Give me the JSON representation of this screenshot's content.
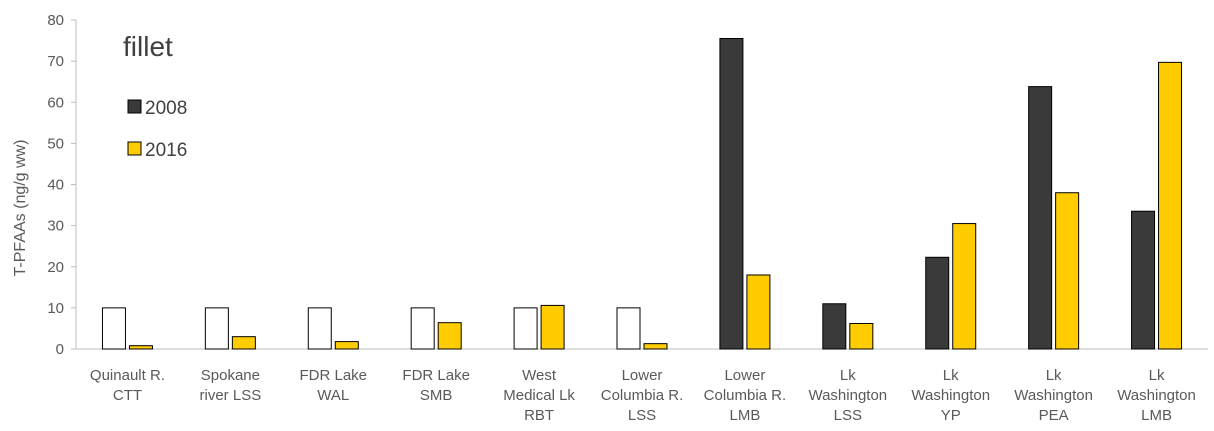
{
  "chart_data": {
    "type": "bar",
    "annotation": "fillet",
    "ylabel": "T-PFAAs  (ng/g ww)",
    "xlabel": "",
    "ylim": [
      0,
      80
    ],
    "yticks": [
      0,
      10,
      20,
      30,
      40,
      50,
      60,
      70,
      80
    ],
    "grid": false,
    "legend_position": "top-left",
    "categories": [
      [
        "Quinault R.",
        "CTT"
      ],
      [
        "Spokane",
        "river LSS"
      ],
      [
        "FDR Lake",
        "WAL"
      ],
      [
        "FDR Lake",
        "SMB"
      ],
      [
        "West",
        "Medical Lk",
        "RBT"
      ],
      [
        "Lower",
        "Columbia R.",
        "LSS"
      ],
      [
        "Lower",
        "Columbia R.",
        "LMB"
      ],
      [
        "Lk",
        "Washington",
        "LSS"
      ],
      [
        "Lk",
        "Washington",
        "YP"
      ],
      [
        "Lk",
        "Washington",
        "PEA"
      ],
      [
        "Lk",
        "Washington",
        "LMB"
      ]
    ],
    "series": [
      {
        "name": "2008",
        "color": "#3a3a3a",
        "values": [
          10,
          10,
          10,
          10,
          10,
          10,
          75.5,
          11,
          22.3,
          63.8,
          33.5
        ],
        "hollow": [
          true,
          true,
          true,
          true,
          true,
          true,
          false,
          false,
          false,
          false,
          false
        ]
      },
      {
        "name": "2016",
        "color": "#ffcc00",
        "values": [
          0.8,
          3,
          1.8,
          6.4,
          10.6,
          1.3,
          18,
          6.2,
          30.5,
          38,
          69.7
        ],
        "hollow": [
          false,
          false,
          false,
          false,
          false,
          false,
          false,
          false,
          false,
          false,
          false
        ]
      }
    ],
    "hollow_fill": "#ffffff",
    "outline_color": "#000000",
    "axis_color": "#bfbfbf"
  }
}
